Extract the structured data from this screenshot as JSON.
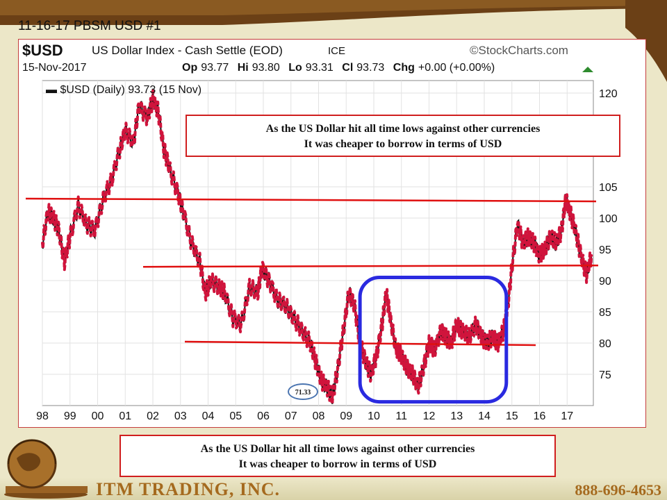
{
  "slide": {
    "title": "11-16-17  PBSM USD #1",
    "company": "ITM TRADING, INC.",
    "phone": "888-696-4653"
  },
  "header": {
    "symbol": "$USD",
    "name": "US Dollar Index - Cash Settle (EOD)",
    "exchange": "ICE",
    "brand": "©StockCharts.com",
    "date": "15-Nov-2017",
    "op_label": "Op",
    "op": "93.77",
    "hi_label": "Hi",
    "hi": "93.80",
    "lo_label": "Lo",
    "lo": "93.31",
    "cl_label": "Cl",
    "cl": "93.73",
    "chg_label": "Chg",
    "chg": "+0.00 (+0.00%)",
    "legend": "$USD (Daily) 93.73 (15 Nov)"
  },
  "callouts": {
    "top_line1": "As the US Dollar hit all time lows against other currencies",
    "top_line2": "It was cheaper to borrow in terms of USD",
    "bottom_line1": "As the US Dollar hit all time lows against other currencies",
    "bottom_line2": "It was cheaper to borrow in terms of USD"
  },
  "low_label": "71.33",
  "colors": {
    "line": "#d0143c",
    "support": "#e01010",
    "highlight": "#2a2ae0",
    "callout_border": "#d01e1e",
    "brand": "#a56a1e"
  },
  "chart_data": {
    "type": "line",
    "title": "$USD US Dollar Index - Cash Settle (EOD)",
    "x_ticks": [
      "98",
      "99",
      "00",
      "01",
      "02",
      "03",
      "04",
      "05",
      "06",
      "07",
      "08",
      "09",
      "10",
      "11",
      "12",
      "13",
      "14",
      "15",
      "16",
      "17"
    ],
    "y_ticks": [
      75,
      80,
      85,
      90,
      95,
      100,
      105,
      120
    ],
    "ylim": [
      70,
      122
    ],
    "xlim": [
      1998,
      2017.95
    ],
    "grid": true,
    "legend": "top-left",
    "series": [
      {
        "name": "$USD (Daily) 93.73 (15 Nov)",
        "x": [
          1998.0,
          1998.2,
          1998.4,
          1998.6,
          1998.8,
          1999.0,
          1999.3,
          1999.6,
          1999.9,
          2000.2,
          2000.5,
          2000.8,
          2001.0,
          2001.3,
          2001.5,
          2001.8,
          2002.0,
          2002.2,
          2002.4,
          2002.6,
          2002.9,
          2003.1,
          2003.4,
          2003.7,
          2003.9,
          2004.1,
          2004.4,
          2004.6,
          2004.9,
          2005.2,
          2005.5,
          2005.8,
          2005.95,
          2006.2,
          2006.5,
          2006.8,
          2007.1,
          2007.4,
          2007.7,
          2007.9,
          2008.1,
          2008.3,
          2008.5,
          2008.7,
          2008.9,
          2009.1,
          2009.3,
          2009.5,
          2009.7,
          2009.9,
          2010.1,
          2010.3,
          2010.45,
          2010.6,
          2010.8,
          2011.0,
          2011.2,
          2011.4,
          2011.6,
          2011.8,
          2012.0,
          2012.2,
          2012.45,
          2012.6,
          2012.8,
          2013.0,
          2013.2,
          2013.45,
          2013.7,
          2013.9,
          2014.1,
          2014.3,
          2014.5,
          2014.7,
          2014.85,
          2015.0,
          2015.2,
          2015.4,
          2015.6,
          2015.8,
          2016.0,
          2016.2,
          2016.4,
          2016.6,
          2016.8,
          2016.95,
          2017.1,
          2017.3,
          2017.5,
          2017.7,
          2017.88
        ],
        "values": [
          96,
          101,
          100,
          98,
          93,
          97,
          102,
          99,
          98,
          103,
          106,
          111,
          114,
          112,
          118,
          116,
          119,
          117,
          111,
          108,
          104,
          101,
          96,
          93,
          88,
          90,
          89,
          88,
          84,
          83,
          89,
          88,
          92,
          90,
          87,
          86,
          84,
          82,
          80,
          77,
          74,
          73,
          71.33,
          76,
          82,
          88,
          86,
          80,
          77,
          75,
          78,
          83,
          88,
          84,
          79,
          78,
          76,
          75,
          73,
          76,
          80,
          79,
          82,
          81,
          80,
          83,
          82,
          81,
          83,
          81,
          80,
          81,
          80,
          82,
          86,
          92,
          99,
          96,
          97,
          96,
          94,
          95,
          97,
          96,
          98,
          103,
          101,
          98,
          94,
          91,
          94
        ]
      }
    ],
    "support_lines": [
      103,
      92.2,
      80
    ],
    "annotations": [
      "71.33"
    ]
  }
}
